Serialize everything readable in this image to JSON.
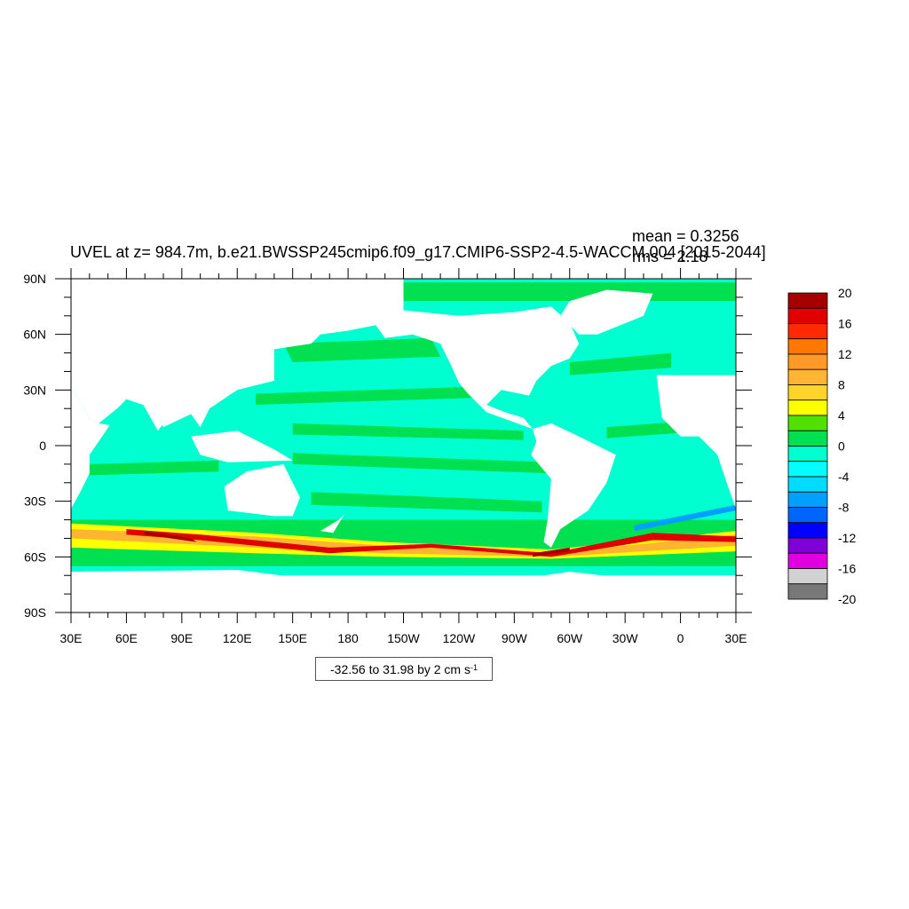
{
  "title": {
    "main": "UVEL at z= 984.7m, b.e21.BWSSP245cmip6.f09_g17.CMIP6-SSP2-4.5-WACCM.004 [2015-2044]",
    "mean": "mean = 0.3256",
    "rms": "rms = 2.18"
  },
  "range_label": {
    "text": "-32.56 to 31.98 by 2 cm s",
    "exponent": "-1"
  },
  "map": {
    "lon_ticks": [
      "30E",
      "60E",
      "90E",
      "120E",
      "150E",
      "180",
      "150W",
      "120W",
      "90W",
      "60W",
      "30W",
      "0",
      "30E"
    ],
    "lat_ticks": [
      "90N",
      "60N",
      "30N",
      "0",
      "30S",
      "60S",
      "90S"
    ],
    "lon_range": [
      30,
      390
    ],
    "lat_range": [
      -90,
      90
    ],
    "ocean_background_color": "#00ffd0",
    "land_color": "#ffffff"
  },
  "colorbar": {
    "labels": [
      "20",
      "16",
      "12",
      "8",
      "4",
      "0",
      "-4",
      "-8",
      "-12",
      "-16",
      "-20"
    ],
    "colors": [
      "#a50000",
      "#e00000",
      "#ff2a00",
      "#ff7800",
      "#ff9a26",
      "#ffb432",
      "#ffd42a",
      "#ffff00",
      "#52e000",
      "#00e050",
      "#00ffd0",
      "#00ffff",
      "#00dcff",
      "#00a0ff",
      "#0064ff",
      "#0000ff",
      "#8000d8",
      "#e000e0",
      "#d2d2d2",
      "#787878"
    ]
  }
}
